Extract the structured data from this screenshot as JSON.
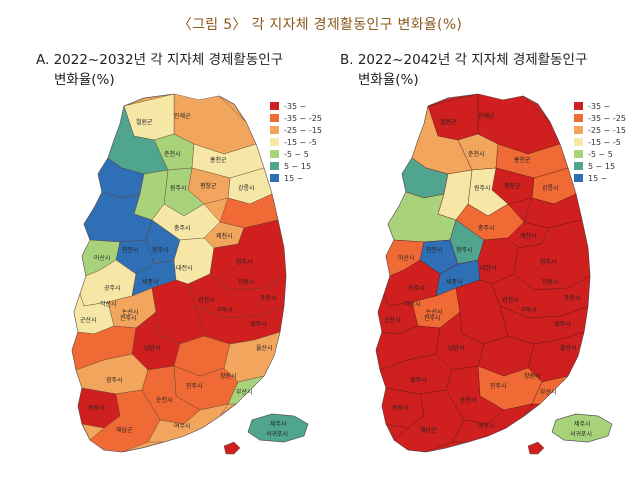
{
  "figure_title": "〈그림 5〉 각 지자체 경제활동인구 변화율(%)",
  "colors": {
    "cls1": "#d01f1f",
    "cls2": "#f06a36",
    "cls3": "#f2a55c",
    "cls4": "#f6e7a6",
    "cls5": "#a9d37b",
    "cls6": "#4fa58e",
    "cls7": "#2f6fb6"
  },
  "panel_a": {
    "title_line1": "A. 2022~2032년 각 지자체 경제활동인구",
    "title_line2": "변화율(%)",
    "legend": [
      "-35 ~",
      "-35 ~ -25",
      "-25 ~ -15",
      "-15 ~ -5",
      "-5 ~ 5",
      "5 ~ 15",
      "15 ~"
    ],
    "labels": {
      "hongcheon": "홍천군",
      "inje": "인제군",
      "cheorwon": "철원군",
      "chuncheon": "춘천시",
      "gangneung": "강릉시",
      "pyeongchang": "평창군",
      "wonju": "원주시",
      "chungju": "충주시",
      "jecheon": "제천시",
      "cheongju": "청주시",
      "cheonan": "천안시",
      "asan": "아산시",
      "sejong": "세종시",
      "daejeon": "대전시",
      "gongju": "공주시",
      "nonsan": "논산시",
      "andong": "안동시",
      "yeongju": "영주시",
      "pohang": "포항시",
      "gyeongju": "경주시",
      "gimcheon": "김천시",
      "gumi": "구미시",
      "ulsan": "울산시",
      "busan": "부산시",
      "changwon": "창원시",
      "jinju": "진주시",
      "jeonju": "전주시",
      "iksan": "익산시",
      "gunsan": "군산시",
      "namwon": "남원시",
      "gwangju": "광주시",
      "suncheon": "순천시",
      "yeosu": "여수시",
      "mokpo": "목포시",
      "haenam": "해남군",
      "jeju": "제주시",
      "seogwipo": "서귀포시"
    }
  },
  "panel_b": {
    "title_line1": "B. 2022~2042년 각 지자체 경제활동인구",
    "title_line2": "변화율(%)",
    "legend": [
      "-35 ~",
      "-35 ~ -25",
      "-25 ~ -15",
      "-15 ~ -5",
      "-5 ~ 5",
      "5 ~ 15",
      "15 ~"
    ],
    "labels": {
      "hongcheon": "홍천군",
      "inje": "인제군",
      "cheorwon": "철원군",
      "chuncheon": "춘천시",
      "gangneung": "강릉시",
      "pyeongchang": "평창군",
      "wonju": "원주시",
      "chungju": "충주시",
      "jecheon": "제천시",
      "cheongju": "청주시",
      "cheonan": "천안시",
      "asan": "아산시",
      "sejong": "세종시",
      "daejeon": "대전시",
      "gongju": "공주시",
      "nonsan": "논산시",
      "andong": "안동시",
      "yeongju": "영주시",
      "pohang": "포항시",
      "gyeongju": "경주시",
      "gimcheon": "김천시",
      "gumi": "구미시",
      "ulsan": "울산시",
      "busan": "부산시",
      "changwon": "창원시",
      "jinju": "진주시",
      "jeonju": "전주시",
      "iksan": "익산시",
      "gunsan": "군산시",
      "namwon": "남원시",
      "gwangju": "광주시",
      "suncheon": "순천시",
      "yeosu": "여수시",
      "mokpo": "목포시",
      "haenam": "해남군",
      "jeju": "제주시",
      "seogwipo": "서귀포시"
    }
  }
}
